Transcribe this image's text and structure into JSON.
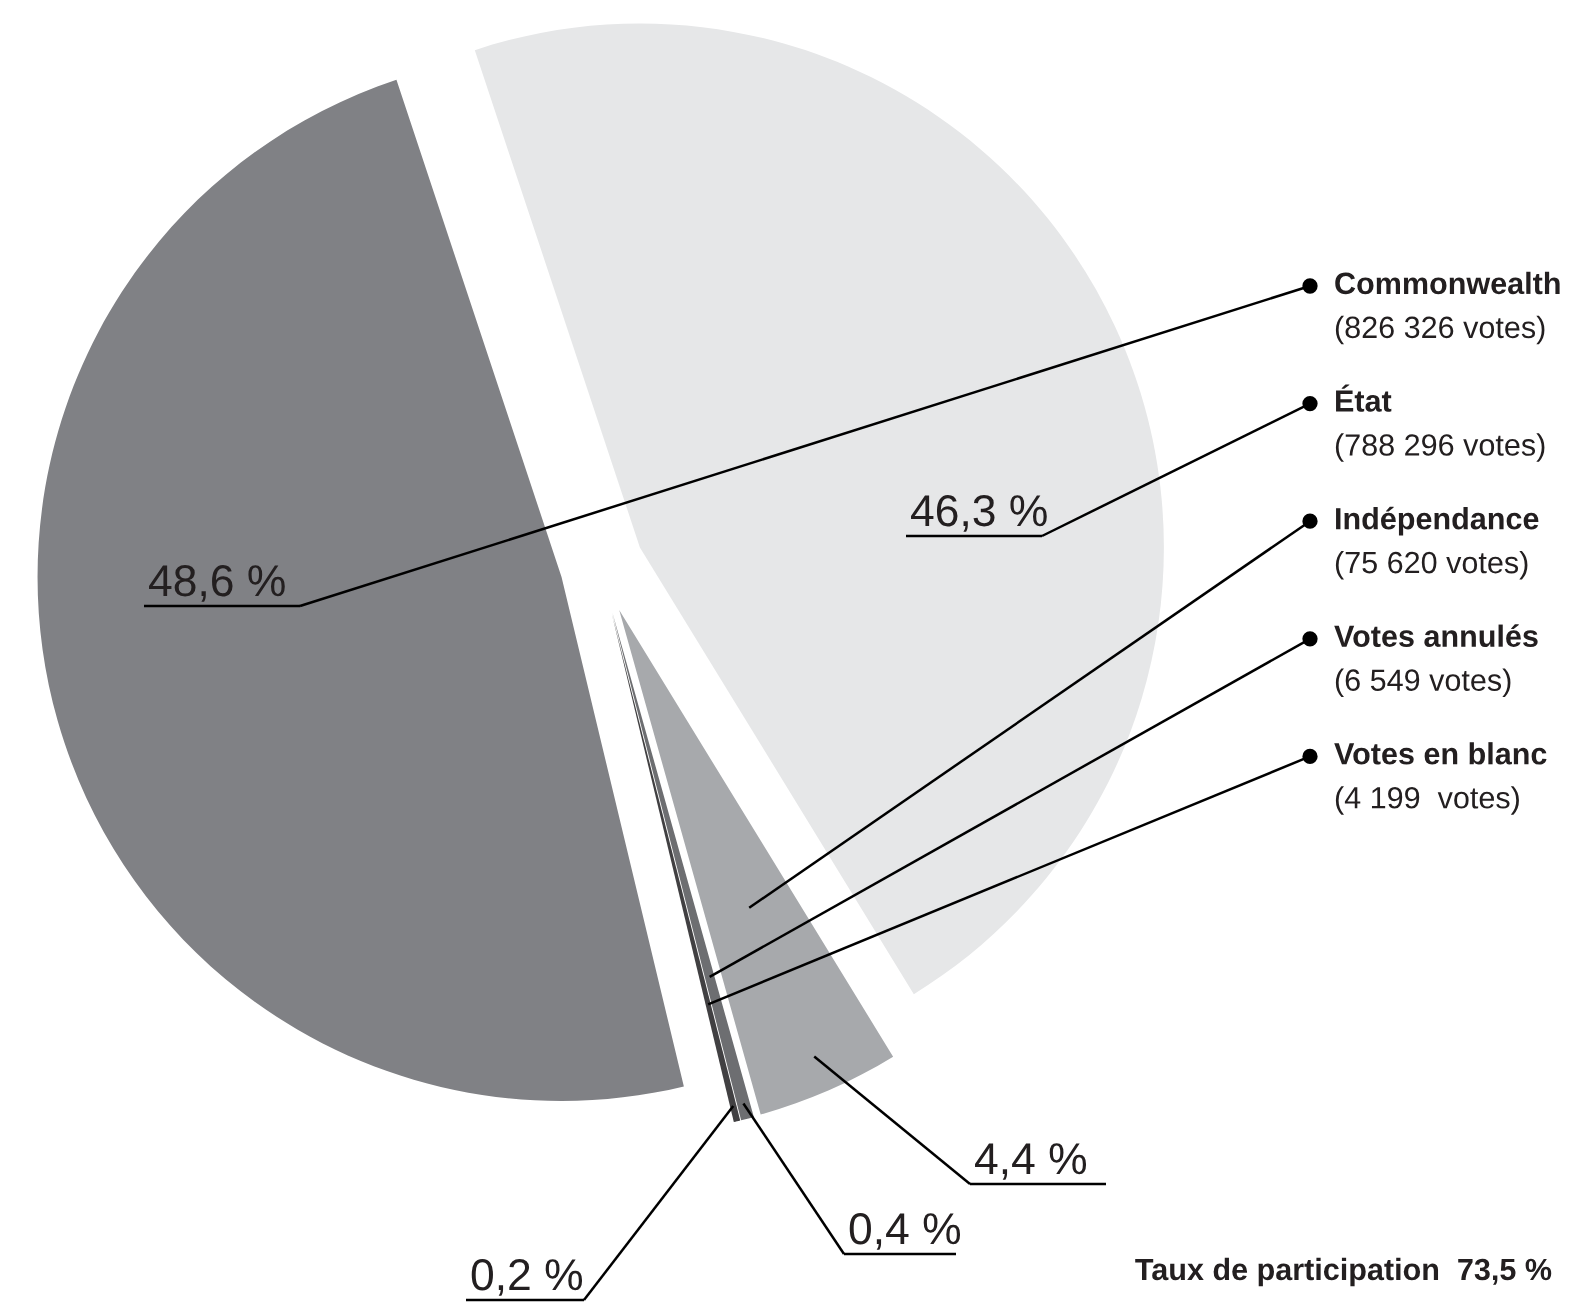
{
  "chart_data": {
    "type": "pie",
    "categories": [
      "Commonwealth\n(826 326 votes)",
      "État\n(788 296 votes)",
      "Indépendance\n(75 620 votes)",
      "Votes annulés\n(6 549 votes)",
      "Votes en blanc\n(4 199  votes)"
    ],
    "values": [
      48.6,
      46.3,
      4.4,
      0.4,
      0.2
    ],
    "colors": [
      "#808185",
      "#e6e7e8",
      "#a7a9ac",
      "#6d6e71",
      "#414042"
    ],
    "value_labels": [
      "48,6 %",
      "46,3 %",
      "4,4 %",
      "0,4 %",
      "0,2 %"
    ],
    "annotations": [
      "Taux de participation  73,5 %"
    ]
  }
}
